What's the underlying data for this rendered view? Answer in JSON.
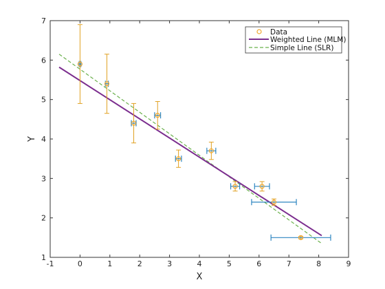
{
  "chart_data": {
    "type": "scatter",
    "xlabel": "X",
    "ylabel": "Y",
    "xlim": [
      -1,
      9
    ],
    "ylim": [
      1,
      7
    ],
    "xticks": [
      "-1",
      "0",
      "1",
      "2",
      "3",
      "4",
      "5",
      "6",
      "7",
      "8",
      "9"
    ],
    "yticks": [
      "1",
      "2",
      "3",
      "4",
      "5",
      "6",
      "7"
    ],
    "grid": false,
    "legend_position": "top-right",
    "colors": {
      "data": "#f0a830",
      "y_error": "#e0a020",
      "x_error": "#2e86c1",
      "weighted_line": "#7b2d8e",
      "simple_line": "#6ab04c"
    },
    "series": [
      {
        "name": "Data",
        "kind": "points",
        "x": [
          0.0,
          0.9,
          1.8,
          2.6,
          3.3,
          4.4,
          5.2,
          6.1,
          6.5,
          7.4
        ],
        "y": [
          5.9,
          5.4,
          4.4,
          4.6,
          3.5,
          3.7,
          2.8,
          2.8,
          2.4,
          1.5
        ],
        "x_err": [
          0.03,
          0.05,
          0.08,
          0.1,
          0.1,
          0.15,
          0.15,
          0.25,
          0.75,
          1.0
        ],
        "y_err": [
          1.0,
          0.75,
          0.5,
          0.35,
          0.22,
          0.22,
          0.12,
          0.12,
          0.08,
          0.03
        ]
      },
      {
        "name": "Weighted Line (MLM)",
        "kind": "line",
        "style": "solid",
        "x": [
          -0.7,
          8.1
        ],
        "y": [
          5.82,
          1.55
        ]
      },
      {
        "name": "Simple Line (SLR)",
        "kind": "line",
        "style": "dashed",
        "x": [
          -0.7,
          8.1
        ],
        "y": [
          6.15,
          1.35
        ]
      }
    ]
  }
}
